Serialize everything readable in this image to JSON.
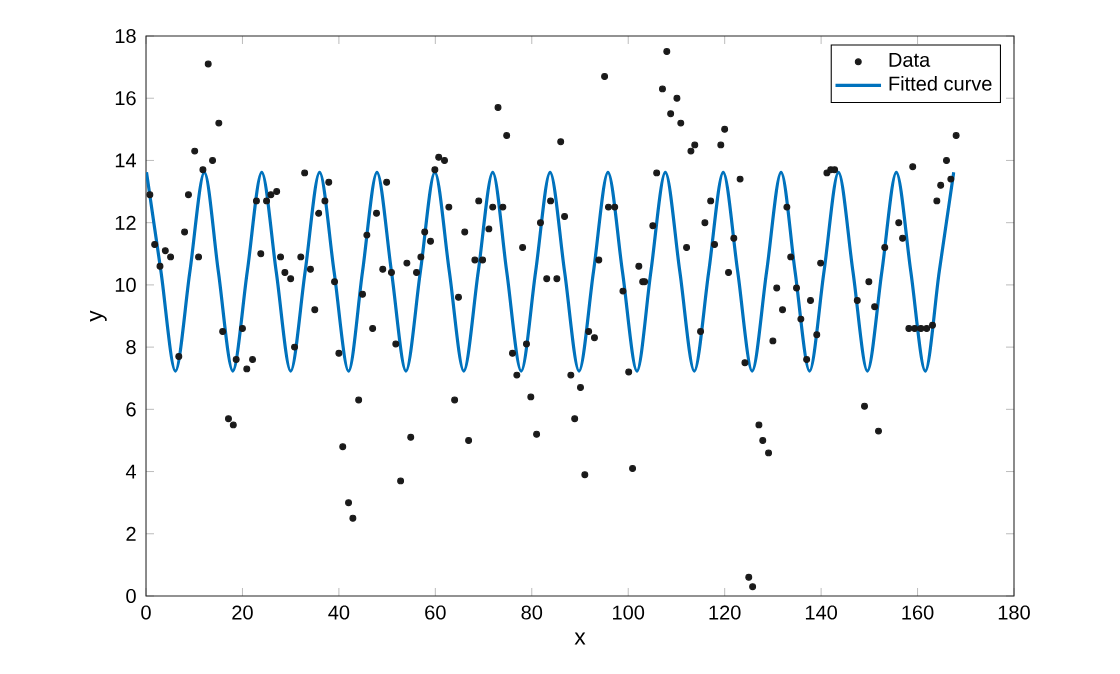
{
  "chart_data": {
    "type": "scatter",
    "xlabel": "x",
    "ylabel": "y",
    "xlim": [
      0,
      180
    ],
    "ylim": [
      0,
      18
    ],
    "xticks": [
      0,
      20,
      40,
      60,
      80,
      100,
      120,
      140,
      160,
      180
    ],
    "yticks": [
      0,
      2,
      4,
      6,
      8,
      10,
      12,
      14,
      16,
      18
    ],
    "grid": false,
    "legend": "top right",
    "series": [
      {
        "name": "Data",
        "marker": "circle",
        "color": "#1a1a1a",
        "x": [
          0.8,
          1.8,
          2.9,
          4.0,
          5.1,
          6.8,
          8.0,
          8.8,
          10.1,
          10.9,
          11.8,
          12.9,
          13.8,
          15.1,
          15.9,
          17.1,
          18.1,
          18.7,
          20.0,
          20.9,
          22.1,
          22.9,
          23.8,
          25.0,
          25.9,
          27.1,
          27.9,
          28.8,
          30.0,
          30.8,
          32.1,
          32.9,
          34.1,
          35.0,
          35.8,
          37.1,
          37.9,
          39.1,
          40.0,
          40.8,
          42.0,
          42.9,
          44.1,
          44.9,
          45.8,
          47.0,
          47.8,
          49.1,
          49.9,
          50.9,
          51.8,
          52.8,
          54.1,
          54.9,
          56.1,
          57.0,
          57.8,
          59.0,
          59.9,
          60.7,
          61.9,
          62.8,
          64.0,
          64.8,
          66.1,
          66.9,
          68.2,
          69.0,
          69.8,
          71.1,
          71.9,
          73.0,
          74.0,
          74.8,
          76.0,
          76.9,
          78.1,
          78.9,
          79.8,
          81.0,
          81.8,
          83.1,
          83.9,
          85.2,
          86.0,
          86.8,
          88.1,
          88.9,
          90.1,
          91.0,
          91.8,
          93.0,
          93.9,
          95.1,
          95.9,
          97.2,
          98.9,
          100.1,
          100.9,
          102.2,
          103.0,
          103.4,
          105.1,
          105.9,
          107.1,
          108.0,
          108.8,
          110.1,
          110.9,
          112.1,
          113.0,
          113.8,
          115.0,
          115.9,
          117.1,
          117.9,
          119.2,
          120.0,
          120.8,
          121.9,
          123.2,
          124.2,
          125.0,
          125.8,
          127.1,
          127.9,
          129.1,
          130.0,
          130.8,
          132.0,
          132.9,
          133.7,
          134.9,
          135.8,
          137.0,
          137.8,
          139.1,
          139.9,
          141.2,
          142.0,
          142.8,
          147.5,
          149.0,
          149.9,
          151.1,
          151.9,
          153.2,
          156.1,
          156.9,
          158.2,
          159.0,
          159.4,
          160.7,
          161.9,
          163.1,
          164.0,
          164.8,
          166.0,
          166.9,
          168.0
        ],
        "values": [
          12.9,
          11.3,
          10.6,
          11.1,
          10.9,
          7.7,
          11.7,
          12.9,
          14.3,
          10.9,
          13.7,
          17.1,
          14.0,
          15.2,
          8.5,
          5.7,
          5.5,
          7.6,
          8.6,
          7.3,
          7.6,
          12.7,
          11.0,
          12.7,
          12.9,
          13.0,
          10.9,
          10.4,
          10.2,
          8.0,
          10.9,
          13.6,
          10.5,
          9.2,
          12.3,
          12.7,
          13.3,
          10.1,
          7.8,
          4.8,
          3.0,
          2.5,
          6.3,
          9.7,
          11.6,
          8.6,
          12.3,
          10.5,
          13.3,
          10.4,
          8.1,
          3.7,
          10.7,
          5.1,
          10.4,
          10.9,
          11.7,
          11.4,
          13.7,
          14.1,
          14.0,
          12.5,
          6.3,
          9.6,
          11.7,
          5.0,
          10.8,
          12.7,
          10.8,
          11.8,
          12.5,
          15.7,
          12.5,
          14.8,
          7.8,
          7.1,
          11.2,
          8.1,
          6.4,
          5.2,
          12.0,
          10.2,
          12.7,
          10.2,
          14.6,
          12.2,
          7.1,
          5.7,
          6.7,
          3.9,
          8.5,
          8.3,
          10.8,
          16.7,
          12.5,
          12.5,
          9.8,
          7.2,
          4.1,
          10.6,
          10.1,
          10.1,
          11.9,
          13.6,
          16.3,
          17.5,
          15.5,
          16.0,
          15.2,
          11.2,
          14.3,
          14.5,
          8.5,
          12.0,
          12.7,
          11.3,
          14.5,
          15.0,
          10.4,
          11.5,
          13.4,
          7.5,
          0.6,
          0.3,
          5.5,
          5.0,
          4.6,
          8.2,
          9.9,
          9.2,
          12.5,
          10.9,
          9.9,
          8.9,
          7.6,
          9.5,
          8.4,
          10.7,
          13.6,
          13.7,
          13.7,
          9.5,
          6.1,
          10.1,
          9.3,
          5.3,
          11.2,
          12.0,
          11.5,
          8.6,
          13.8,
          8.6,
          8.6,
          8.6,
          8.7,
          12.7,
          13.2,
          14.0,
          13.4,
          14.8
        ]
      },
      {
        "name": "Fitted curve",
        "type": "line",
        "marker": "none",
        "line_style": "solid",
        "color": "#0072bd",
        "x": [
          0.1,
          3.1,
          6.1,
          9.1,
          12.1,
          15.0,
          18.0,
          21.0,
          24.0,
          27.0,
          30.0,
          33.0,
          36.0,
          39.0,
          42.0,
          44.9,
          47.9,
          50.9,
          53.9,
          56.9,
          59.9,
          62.9,
          65.9,
          68.9,
          71.9,
          74.8,
          77.8,
          80.8,
          83.8,
          86.8,
          89.8,
          92.8,
          95.8,
          98.8,
          101.8,
          104.7,
          107.7,
          110.7,
          113.7,
          116.7,
          119.7,
          122.7,
          125.7,
          128.7,
          131.7,
          134.6,
          137.6,
          140.6,
          143.6,
          146.6,
          149.6,
          152.6,
          155.6,
          158.6,
          161.6,
          164.5,
          167.5
        ],
        "values": [
          13.62,
          10.43,
          7.23,
          10.43,
          13.62,
          10.43,
          7.23,
          10.43,
          13.62,
          10.43,
          7.23,
          10.43,
          13.62,
          10.43,
          7.23,
          10.43,
          13.62,
          10.43,
          7.23,
          10.43,
          13.62,
          10.43,
          7.23,
          10.43,
          13.62,
          10.43,
          7.23,
          10.43,
          13.62,
          10.43,
          7.23,
          10.43,
          13.62,
          10.43,
          7.23,
          10.43,
          13.62,
          10.43,
          7.23,
          10.43,
          13.62,
          10.43,
          7.23,
          10.43,
          13.62,
          10.43,
          7.23,
          10.43,
          13.62,
          10.43,
          7.23,
          10.43,
          13.62,
          10.43,
          7.23,
          10.43,
          13.62
        ]
      }
    ]
  }
}
